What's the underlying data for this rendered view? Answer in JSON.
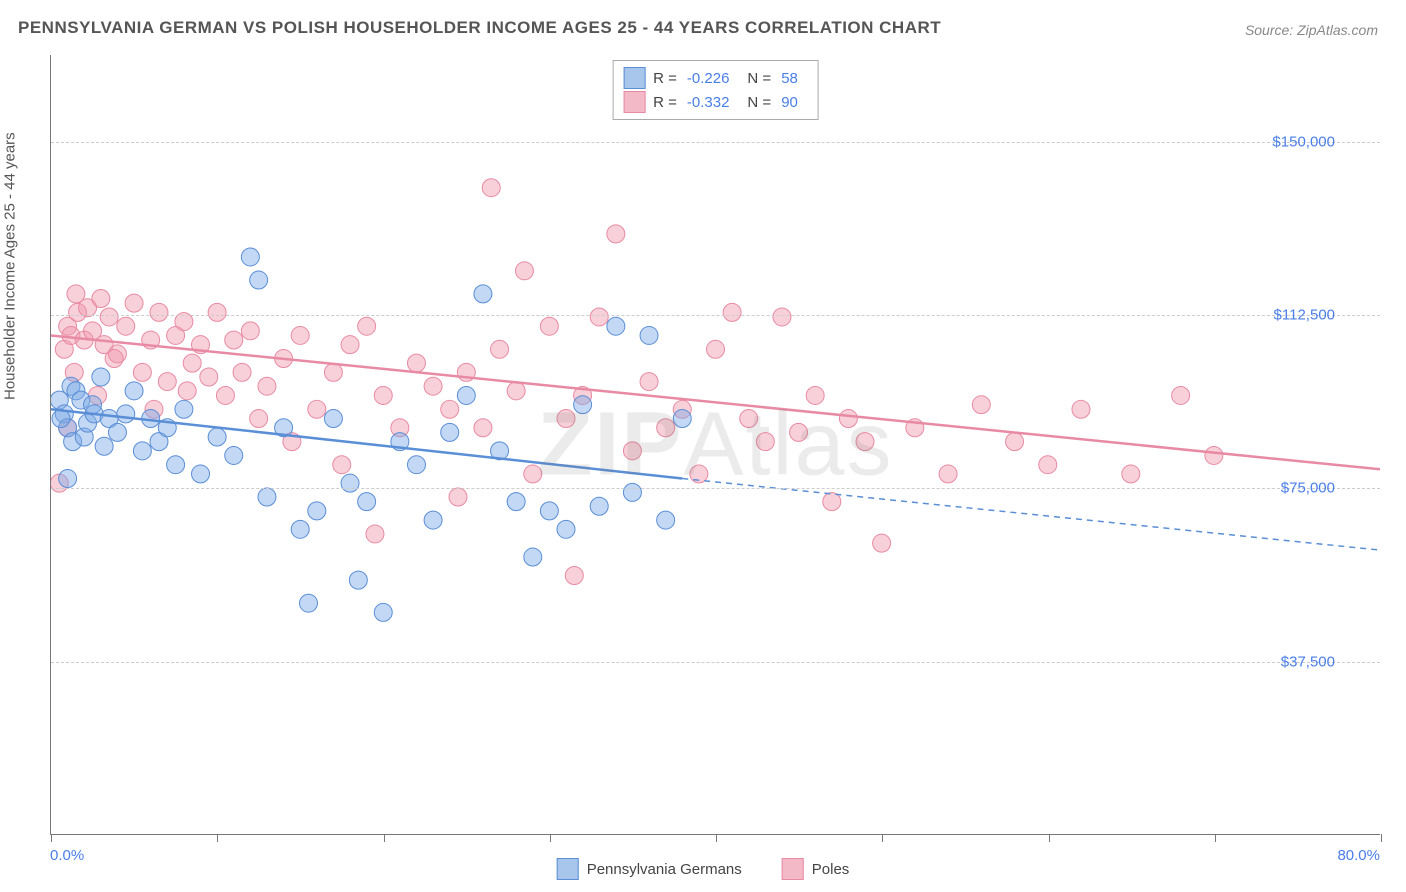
{
  "title": "PENNSYLVANIA GERMAN VS POLISH HOUSEHOLDER INCOME AGES 25 - 44 YEARS CORRELATION CHART",
  "source": "Source: ZipAtlas.com",
  "watermark": {
    "bold": "ZIP",
    "rest": "Atlas"
  },
  "chart": {
    "type": "scatter-regression",
    "background_color": "#ffffff",
    "grid_color": "#cccccc",
    "axis_color": "#777777",
    "xlim": [
      0,
      80
    ],
    "ylim": [
      0,
      168750
    ],
    "y_gridlines": [
      37500,
      75000,
      112500,
      150000
    ],
    "y_tick_labels": [
      "$37,500",
      "$75,000",
      "$112,500",
      "$150,000"
    ],
    "x_ticks": [
      0,
      10,
      20,
      30,
      40,
      50,
      60,
      70,
      80
    ],
    "x_label_min": "0.0%",
    "x_label_max": "80.0%",
    "y_axis_title": "Householder Income Ages 25 - 44 years",
    "tick_label_color": "#4a7ee8",
    "axis_title_color": "#555555",
    "title_fontsize": 17,
    "label_fontsize": 15,
    "marker_radius": 9,
    "marker_opacity": 0.5,
    "regression_line_width": 2.5
  },
  "series": [
    {
      "name": "Pennsylvania Germans",
      "color_fill": "rgba(122,168,230,0.45)",
      "color_stroke": "#5a8ed6",
      "swatch_fill": "#a8c5ec",
      "swatch_border": "#5a8ed6",
      "R": "-0.226",
      "N": "58",
      "regression": {
        "x1": 0,
        "y1": 92000,
        "x2": 38,
        "y2": 77000,
        "solid": true
      },
      "regression_ext": {
        "x1": 38,
        "y1": 77000,
        "x2": 80,
        "y2": 61500,
        "dashed": true
      },
      "points": [
        [
          0.5,
          94000
        ],
        [
          0.8,
          91000
        ],
        [
          1.0,
          88000
        ],
        [
          1.2,
          97000
        ],
        [
          1.3,
          85000
        ],
        [
          0.6,
          90000
        ],
        [
          1.5,
          96000
        ],
        [
          1.8,
          94000
        ],
        [
          2.0,
          86000
        ],
        [
          2.2,
          89000
        ],
        [
          2.5,
          93000
        ],
        [
          2.6,
          91000
        ],
        [
          3.0,
          99000
        ],
        [
          3.2,
          84000
        ],
        [
          3.5,
          90000
        ],
        [
          4.0,
          87000
        ],
        [
          4.5,
          91000
        ],
        [
          5.0,
          96000
        ],
        [
          5.5,
          83000
        ],
        [
          6.0,
          90000
        ],
        [
          6.5,
          85000
        ],
        [
          7.0,
          88000
        ],
        [
          7.5,
          80000
        ],
        [
          8.0,
          92000
        ],
        [
          9.0,
          78000
        ],
        [
          10.0,
          86000
        ],
        [
          11.0,
          82000
        ],
        [
          12.0,
          125000
        ],
        [
          12.5,
          120000
        ],
        [
          13.0,
          73000
        ],
        [
          14.0,
          88000
        ],
        [
          15.0,
          66000
        ],
        [
          16.0,
          70000
        ],
        [
          17.0,
          90000
        ],
        [
          18.0,
          76000
        ],
        [
          19.0,
          72000
        ],
        [
          20.0,
          48000
        ],
        [
          21.0,
          85000
        ],
        [
          22.0,
          80000
        ],
        [
          23.0,
          68000
        ],
        [
          24.0,
          87000
        ],
        [
          25.0,
          95000
        ],
        [
          26.0,
          117000
        ],
        [
          27.0,
          83000
        ],
        [
          28.0,
          72000
        ],
        [
          29.0,
          60000
        ],
        [
          30.0,
          70000
        ],
        [
          31.0,
          66000
        ],
        [
          32.0,
          93000
        ],
        [
          33.0,
          71000
        ],
        [
          34.0,
          110000
        ],
        [
          35.0,
          74000
        ],
        [
          36.0,
          108000
        ],
        [
          37.0,
          68000
        ],
        [
          38.0,
          90000
        ],
        [
          15.5,
          50000
        ],
        [
          18.5,
          55000
        ],
        [
          1.0,
          77000
        ]
      ]
    },
    {
      "name": "Poles",
      "color_fill": "rgba(240,150,170,0.45)",
      "color_stroke": "#e88aa3",
      "swatch_fill": "#f4b9c7",
      "swatch_border": "#e88aa3",
      "R": "-0.332",
      "N": "90",
      "regression": {
        "x1": 0,
        "y1": 108000,
        "x2": 80,
        "y2": 79000,
        "solid": true
      },
      "points": [
        [
          0.5,
          76000
        ],
        [
          0.8,
          105000
        ],
        [
          1.0,
          110000
        ],
        [
          1.2,
          108000
        ],
        [
          1.5,
          117000
        ],
        [
          1.6,
          113000
        ],
        [
          2.0,
          107000
        ],
        [
          2.2,
          114000
        ],
        [
          2.5,
          109000
        ],
        [
          3.0,
          116000
        ],
        [
          3.2,
          106000
        ],
        [
          3.5,
          112000
        ],
        [
          4.0,
          104000
        ],
        [
          4.5,
          110000
        ],
        [
          5.0,
          115000
        ],
        [
          5.5,
          100000
        ],
        [
          6.0,
          107000
        ],
        [
          6.5,
          113000
        ],
        [
          7.0,
          98000
        ],
        [
          7.5,
          108000
        ],
        [
          8.0,
          111000
        ],
        [
          8.5,
          102000
        ],
        [
          9.0,
          106000
        ],
        [
          9.5,
          99000
        ],
        [
          10.0,
          113000
        ],
        [
          10.5,
          95000
        ],
        [
          11.0,
          107000
        ],
        [
          11.5,
          100000
        ],
        [
          12.0,
          109000
        ],
        [
          13.0,
          97000
        ],
        [
          14.0,
          103000
        ],
        [
          15.0,
          108000
        ],
        [
          16.0,
          92000
        ],
        [
          17.0,
          100000
        ],
        [
          18.0,
          106000
        ],
        [
          19.0,
          110000
        ],
        [
          20.0,
          95000
        ],
        [
          21.0,
          88000
        ],
        [
          22.0,
          102000
        ],
        [
          23.0,
          97000
        ],
        [
          24.0,
          92000
        ],
        [
          25.0,
          100000
        ],
        [
          26.0,
          88000
        ],
        [
          26.5,
          140000
        ],
        [
          27.0,
          105000
        ],
        [
          28.0,
          96000
        ],
        [
          28.5,
          122000
        ],
        [
          29.0,
          78000
        ],
        [
          30.0,
          110000
        ],
        [
          31.0,
          90000
        ],
        [
          32.0,
          95000
        ],
        [
          33.0,
          112000
        ],
        [
          34.0,
          130000
        ],
        [
          35.0,
          83000
        ],
        [
          36.0,
          98000
        ],
        [
          37.0,
          88000
        ],
        [
          38.0,
          92000
        ],
        [
          39.0,
          78000
        ],
        [
          40.0,
          105000
        ],
        [
          41.0,
          113000
        ],
        [
          42.0,
          90000
        ],
        [
          43.0,
          85000
        ],
        [
          44.0,
          112000
        ],
        [
          45.0,
          87000
        ],
        [
          46.0,
          95000
        ],
        [
          47.0,
          72000
        ],
        [
          48.0,
          90000
        ],
        [
          49.0,
          85000
        ],
        [
          50.0,
          63000
        ],
        [
          52.0,
          88000
        ],
        [
          54.0,
          78000
        ],
        [
          56.0,
          93000
        ],
        [
          58.0,
          85000
        ],
        [
          60.0,
          80000
        ],
        [
          62.0,
          92000
        ],
        [
          65.0,
          78000
        ],
        [
          68.0,
          95000
        ],
        [
          70.0,
          82000
        ],
        [
          19.5,
          65000
        ],
        [
          24.5,
          73000
        ],
        [
          1.0,
          88000
        ],
        [
          2.8,
          95000
        ],
        [
          6.2,
          92000
        ],
        [
          14.5,
          85000
        ],
        [
          17.5,
          80000
        ],
        [
          31.5,
          56000
        ],
        [
          1.4,
          100000
        ],
        [
          3.8,
          103000
        ],
        [
          8.2,
          96000
        ],
        [
          12.5,
          90000
        ]
      ]
    }
  ],
  "legend_bottom": [
    {
      "label": "Pennsylvania Germans",
      "swatch_fill": "#a8c5ec",
      "swatch_border": "#5a8ed6"
    },
    {
      "label": "Poles",
      "swatch_fill": "#f4b9c7",
      "swatch_border": "#e88aa3"
    }
  ]
}
